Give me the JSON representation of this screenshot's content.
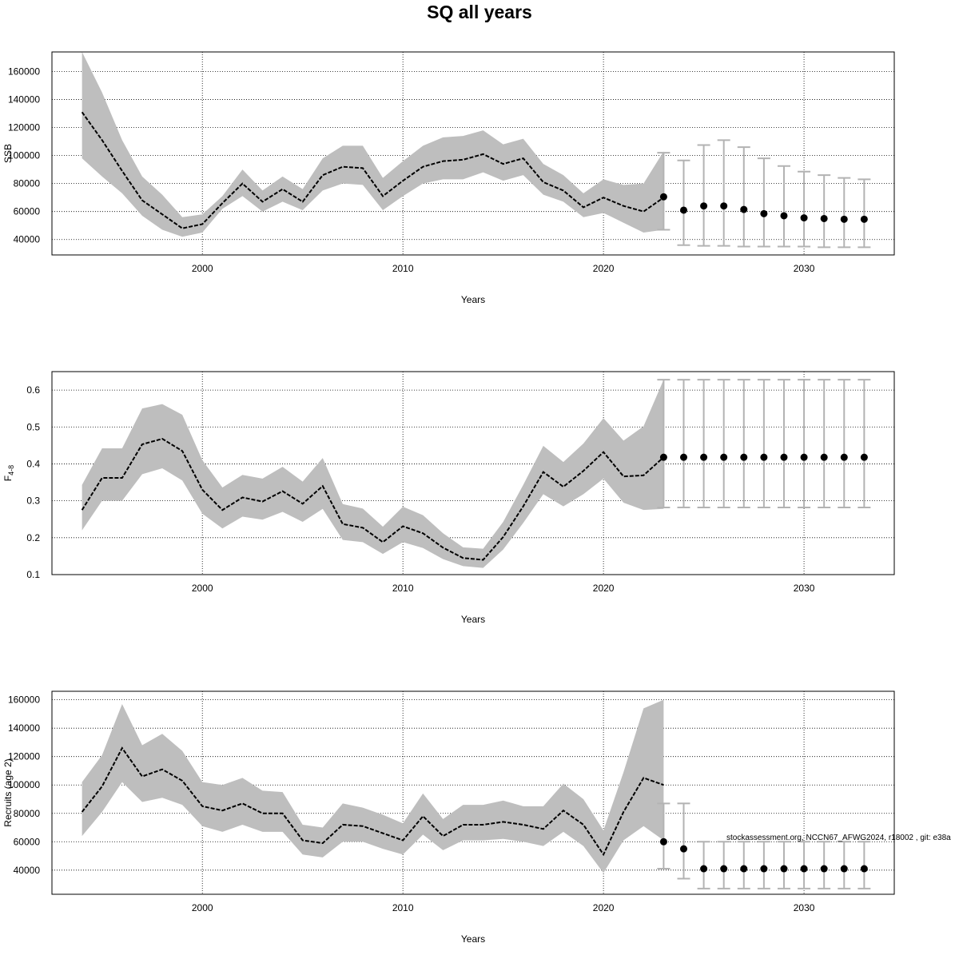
{
  "title": "SQ all years",
  "footnote": "stockassessment.org, NCCN67_AFWG2024, r18002 , git: e38a",
  "colors": {
    "band": "#bebebe",
    "forecast_bar": "#b3b3b3",
    "line": "#000000",
    "grid": "#000000"
  },
  "chart_data": [
    {
      "type": "line",
      "title": "",
      "xlabel": "Years",
      "ylabel": "SSB",
      "xlim": [
        1992.5,
        2034.5
      ],
      "ylim": [
        29000,
        174000
      ],
      "x_ticks": [
        2000,
        2010,
        2020,
        2030
      ],
      "y_ticks": [
        40000,
        60000,
        80000,
        100000,
        120000,
        140000,
        160000
      ],
      "grid": true,
      "series": [
        {
          "kind": "estimate",
          "x": [
            1994,
            1995,
            1996,
            1997,
            1998,
            1999,
            2000,
            2001,
            2002,
            2003,
            2004,
            2005,
            2006,
            2007,
            2008,
            2009,
            2010,
            2011,
            2012,
            2013,
            2014,
            2015,
            2016,
            2017,
            2018,
            2019,
            2020,
            2021,
            2022,
            2023
          ],
          "values": [
            131000,
            111000,
            89000,
            68000,
            58000,
            48000,
            51000,
            66000,
            80000,
            67000,
            76000,
            67000,
            86000,
            92000,
            91000,
            71000,
            82000,
            92000,
            96000,
            97000,
            101000,
            94000,
            98000,
            81000,
            75000,
            63000,
            70000,
            64000,
            60000,
            70000
          ],
          "lower": [
            98000,
            85000,
            73000,
            57000,
            47000,
            42000,
            45000,
            62000,
            71000,
            60000,
            67000,
            61000,
            75000,
            80000,
            79000,
            61000,
            71000,
            80000,
            83000,
            83000,
            88000,
            82000,
            86000,
            72000,
            67000,
            56000,
            59000,
            52000,
            45000,
            47000
          ],
          "upper": [
            174000,
            145000,
            111000,
            85000,
            72000,
            56000,
            58000,
            71000,
            90000,
            75000,
            85000,
            76000,
            98000,
            107000,
            107000,
            84000,
            96000,
            107000,
            113000,
            114000,
            118000,
            108000,
            112000,
            94000,
            86000,
            73000,
            83000,
            79000,
            80000,
            103000
          ]
        },
        {
          "kind": "forecast",
          "x": [
            2023,
            2024,
            2025,
            2026,
            2027,
            2028,
            2029,
            2030,
            2031,
            2032,
            2033
          ],
          "values": [
            70500,
            61000,
            64000,
            64000,
            61500,
            58500,
            57000,
            55500,
            55000,
            54500,
            54500
          ],
          "lower": [
            47000,
            36000,
            35500,
            35500,
            35000,
            35000,
            35000,
            35000,
            34500,
            34500,
            34500
          ],
          "upper": [
            102000,
            96500,
            107500,
            111000,
            106000,
            98000,
            92500,
            88500,
            86000,
            84000,
            83000
          ]
        }
      ]
    },
    {
      "type": "line",
      "title": "",
      "xlabel": "Years",
      "ylabel": "F",
      "ylabel_sub": "4-8",
      "xlim": [
        1992.5,
        2034.5
      ],
      "ylim": [
        0.1,
        0.65
      ],
      "x_ticks": [
        2000,
        2010,
        2020,
        2030
      ],
      "y_ticks": [
        0.1,
        0.2,
        0.3,
        0.4,
        0.5,
        0.6
      ],
      "grid": true,
      "series": [
        {
          "kind": "estimate",
          "x": [
            1994,
            1995,
            1996,
            1997,
            1998,
            1999,
            2000,
            2001,
            2002,
            2003,
            2004,
            2005,
            2006,
            2007,
            2008,
            2009,
            2010,
            2011,
            2012,
            2013,
            2014,
            2015,
            2016,
            2017,
            2018,
            2019,
            2020,
            2021,
            2022,
            2023
          ],
          "values": [
            0.275,
            0.362,
            0.362,
            0.453,
            0.468,
            0.435,
            0.33,
            0.275,
            0.309,
            0.298,
            0.326,
            0.292,
            0.34,
            0.237,
            0.227,
            0.188,
            0.231,
            0.212,
            0.173,
            0.145,
            0.14,
            0.202,
            0.285,
            0.378,
            0.338,
            0.381,
            0.432,
            0.366,
            0.369,
            0.418
          ],
          "lower": [
            0.22,
            0.3,
            0.3,
            0.372,
            0.388,
            0.355,
            0.265,
            0.225,
            0.257,
            0.249,
            0.27,
            0.243,
            0.278,
            0.194,
            0.188,
            0.156,
            0.188,
            0.172,
            0.142,
            0.123,
            0.118,
            0.168,
            0.24,
            0.318,
            0.285,
            0.318,
            0.36,
            0.295,
            0.275,
            0.278
          ],
          "upper": [
            0.343,
            0.442,
            0.442,
            0.55,
            0.562,
            0.533,
            0.41,
            0.336,
            0.37,
            0.36,
            0.392,
            0.352,
            0.416,
            0.291,
            0.279,
            0.23,
            0.284,
            0.261,
            0.212,
            0.174,
            0.17,
            0.243,
            0.343,
            0.449,
            0.405,
            0.455,
            0.524,
            0.463,
            0.502,
            0.628
          ]
        },
        {
          "kind": "forecast",
          "x": [
            2023,
            2024,
            2025,
            2026,
            2027,
            2028,
            2029,
            2030,
            2031,
            2032,
            2033
          ],
          "values": [
            0.418,
            0.418,
            0.418,
            0.418,
            0.418,
            0.418,
            0.418,
            0.418,
            0.418,
            0.418,
            0.418
          ],
          "lower": [
            0.282,
            0.282,
            0.282,
            0.282,
            0.282,
            0.282,
            0.282,
            0.282,
            0.282,
            0.282,
            0.282
          ],
          "upper": [
            0.628,
            0.628,
            0.628,
            0.628,
            0.628,
            0.628,
            0.628,
            0.628,
            0.628,
            0.628,
            0.628
          ]
        }
      ]
    },
    {
      "type": "line",
      "title": "",
      "xlabel": "Years",
      "ylabel": "Recruits (age 2)",
      "xlim": [
        1992.5,
        2034.5
      ],
      "ylim": [
        23000,
        166000
      ],
      "x_ticks": [
        2000,
        2010,
        2020,
        2030
      ],
      "y_ticks": [
        40000,
        60000,
        80000,
        100000,
        120000,
        140000,
        160000
      ],
      "grid": true,
      "series": [
        {
          "kind": "estimate",
          "x": [
            1994,
            1995,
            1996,
            1997,
            1998,
            1999,
            2000,
            2001,
            2002,
            2003,
            2004,
            2005,
            2006,
            2007,
            2008,
            2009,
            2010,
            2011,
            2012,
            2013,
            2014,
            2015,
            2016,
            2017,
            2018,
            2019,
            2020,
            2021,
            2022,
            2023
          ],
          "values": [
            81000,
            99000,
            126000,
            106000,
            111000,
            103000,
            85000,
            82000,
            87000,
            80000,
            80000,
            61000,
            59000,
            72000,
            71000,
            66000,
            61000,
            78000,
            64000,
            72000,
            72000,
            74000,
            72000,
            69000,
            82000,
            72000,
            51000,
            81000,
            105000,
            100000
          ],
          "lower": [
            64000,
            81000,
            102000,
            88000,
            91000,
            86000,
            71000,
            67000,
            72000,
            67000,
            67000,
            51000,
            49000,
            60000,
            60000,
            55000,
            51000,
            65000,
            54000,
            61000,
            61000,
            62000,
            60000,
            57000,
            67000,
            57000,
            38000,
            61000,
            71000,
            61000
          ],
          "upper": [
            102000,
            121000,
            157000,
            128000,
            136000,
            124000,
            102000,
            100000,
            105000,
            96000,
            95000,
            72000,
            70000,
            87000,
            84000,
            79000,
            73000,
            94000,
            76000,
            86000,
            86000,
            89000,
            85000,
            85000,
            101000,
            90000,
            68000,
            109000,
            154000,
            160000
          ]
        },
        {
          "kind": "forecast",
          "x": [
            2023,
            2024,
            2025,
            2026,
            2027,
            2028,
            2029,
            2030,
            2031,
            2032,
            2033
          ],
          "values": [
            60000,
            55000,
            41000,
            41000,
            41000,
            41000,
            41000,
            41000,
            41000,
            41000,
            41000
          ],
          "lower": [
            41000,
            34000,
            27000,
            27000,
            27000,
            27000,
            27000,
            27000,
            27000,
            27000,
            27000
          ],
          "upper": [
            87000,
            87000,
            60000,
            60000,
            60000,
            60000,
            60000,
            60000,
            60000,
            60000,
            60000
          ]
        }
      ]
    }
  ]
}
